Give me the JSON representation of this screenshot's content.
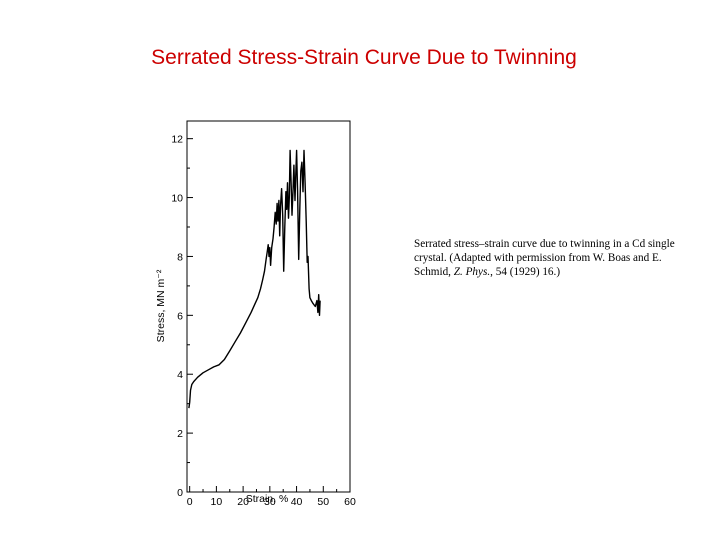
{
  "slide": {
    "title": "Serrated Stress-Strain Curve Due to Twinning"
  },
  "caption": {
    "text_1": "Serrated stress–strain curve due to twinning in a Cd single crystal. (Adapted with permission from W. Boas and E. Schmid, ",
    "journal": "Z. Phys.",
    "text_2": ", 54 (1929) 16.)"
  },
  "chart_data": {
    "type": "line",
    "title": "",
    "xlabel": "Strain, %",
    "ylabel": "Stress, MN m⁻²",
    "xlim": [
      -1,
      60
    ],
    "ylim": [
      0,
      12.6
    ],
    "x_ticks": [
      0,
      10,
      20,
      30,
      40,
      50,
      60
    ],
    "y_ticks": [
      0,
      2,
      4,
      6,
      8,
      10,
      12
    ],
    "grid": false,
    "series": [
      {
        "name": "",
        "points": [
          [
            -0.3,
            2.85
          ],
          [
            0.0,
            3.05
          ],
          [
            0.3,
            3.45
          ],
          [
            0.8,
            3.65
          ],
          [
            1.5,
            3.75
          ],
          [
            3,
            3.9
          ],
          [
            5,
            4.05
          ],
          [
            7,
            4.15
          ],
          [
            9,
            4.25
          ],
          [
            11,
            4.32
          ],
          [
            13,
            4.5
          ],
          [
            15,
            4.8
          ],
          [
            17,
            5.1
          ],
          [
            19,
            5.4
          ],
          [
            21,
            5.75
          ],
          [
            23,
            6.1
          ],
          [
            24.5,
            6.4
          ],
          [
            25.5,
            6.6
          ],
          [
            26.5,
            6.9
          ],
          [
            27.3,
            7.2
          ],
          [
            28,
            7.5
          ],
          [
            28.6,
            7.9
          ],
          [
            29.0,
            8.15
          ],
          [
            29.4,
            8.4
          ],
          [
            29.7,
            8.0
          ],
          [
            30.0,
            8.3
          ],
          [
            30.3,
            7.7
          ],
          [
            30.7,
            8.3
          ],
          [
            31.2,
            8.6
          ],
          [
            31.6,
            9.0
          ],
          [
            32.0,
            9.5
          ],
          [
            32.4,
            9.1
          ],
          [
            32.7,
            9.8
          ],
          [
            33.0,
            9.2
          ],
          [
            33.4,
            9.9
          ],
          [
            33.7,
            8.7
          ],
          [
            34.0,
            9.7
          ],
          [
            34.4,
            10.3
          ],
          [
            34.8,
            9.4
          ],
          [
            35.2,
            7.5
          ],
          [
            35.6,
            9.0
          ],
          [
            36.0,
            10.2
          ],
          [
            36.3,
            9.6
          ],
          [
            36.6,
            10.5
          ],
          [
            37.0,
            9.3
          ],
          [
            37.3,
            10.0
          ],
          [
            37.6,
            11.6
          ],
          [
            38.0,
            10.4
          ],
          [
            38.3,
            9.4
          ],
          [
            38.7,
            10.3
          ],
          [
            39.0,
            11.1
          ],
          [
            39.4,
            9.9
          ],
          [
            39.7,
            10.8
          ],
          [
            40.0,
            11.6
          ],
          [
            40.4,
            10.2
          ],
          [
            40.8,
            7.9
          ],
          [
            41.2,
            9.6
          ],
          [
            41.6,
            10.9
          ],
          [
            42.0,
            11.2
          ],
          [
            42.4,
            10.2
          ],
          [
            42.8,
            11.6
          ],
          [
            43.2,
            10.5
          ],
          [
            43.6,
            9.2
          ],
          [
            44.0,
            7.8
          ],
          [
            44.3,
            8.0
          ],
          [
            44.7,
            6.9
          ],
          [
            45.0,
            6.6
          ],
          [
            45.5,
            6.5
          ],
          [
            46.2,
            6.4
          ],
          [
            47.0,
            6.3
          ],
          [
            47.6,
            6.5
          ],
          [
            48.0,
            6.1
          ],
          [
            48.3,
            6.7
          ],
          [
            48.6,
            6.0
          ],
          [
            48.8,
            6.5
          ]
        ]
      }
    ]
  }
}
